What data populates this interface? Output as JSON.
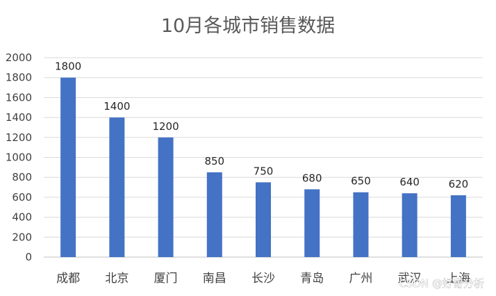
{
  "chart_data": {
    "type": "bar",
    "title": "10月各城市销售数据",
    "xlabel": "",
    "ylabel": "",
    "categories": [
      "成都",
      "北京",
      "厦门",
      "南昌",
      "长沙",
      "青岛",
      "广州",
      "武汉",
      "上海"
    ],
    "values": [
      1800,
      1400,
      1200,
      850,
      750,
      680,
      650,
      640,
      620
    ],
    "data_labels": [
      "1800",
      "1400",
      "1200",
      "850",
      "750",
      "680",
      "650",
      "640",
      "620"
    ],
    "ylim": [
      0,
      2000
    ],
    "yticks": [
      0,
      200,
      400,
      600,
      800,
      1000,
      1200,
      1400,
      1600,
      1800,
      2000
    ],
    "ytick_labels": [
      "0",
      "200",
      "400",
      "600",
      "800",
      "1000",
      "1200",
      "1400",
      "1600",
      "1800",
      "2000"
    ],
    "grid": true,
    "legend": "none",
    "bar_color": "#4472C4"
  },
  "watermark": "CSDN @好奇分析"
}
